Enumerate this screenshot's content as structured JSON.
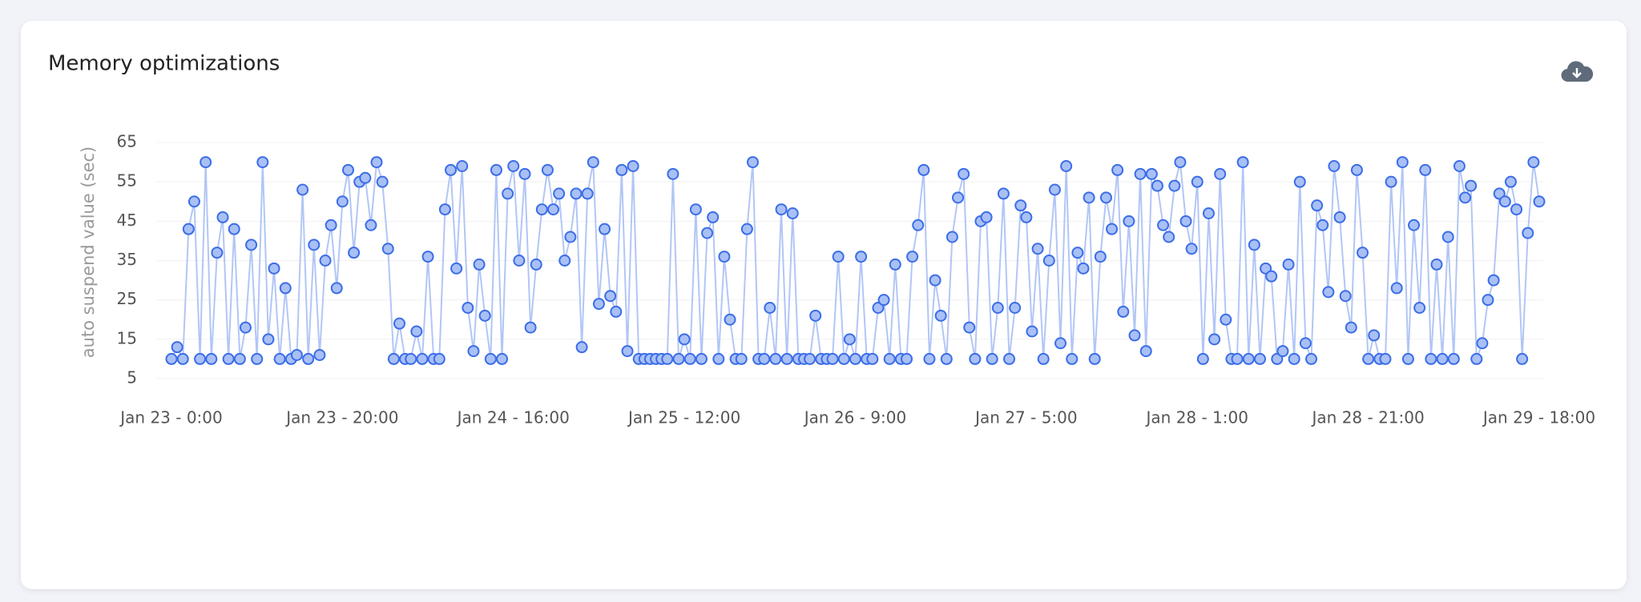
{
  "chart_data": {
    "type": "line",
    "title": "Memory optimizations",
    "y_label": "auto suspend value (sec)",
    "categories": [
      "Jan 23 - 0:00",
      null,
      null,
      null,
      null,
      null,
      null,
      null,
      null,
      null,
      null,
      null,
      null,
      null,
      null,
      null,
      null,
      null,
      null,
      null,
      null,
      null,
      null,
      null,
      null,
      null,
      null,
      null,
      null,
      null,
      "Jan 23 - 20:00",
      null,
      null,
      null,
      null,
      null,
      null,
      null,
      null,
      null,
      null,
      null,
      null,
      null,
      null,
      null,
      null,
      null,
      null,
      null,
      null,
      null,
      null,
      null,
      null,
      null,
      null,
      null,
      null,
      null,
      "Jan 24 - 16:00",
      null,
      null,
      null,
      null,
      null,
      null,
      null,
      null,
      null,
      null,
      null,
      null,
      null,
      null,
      null,
      null,
      null,
      null,
      null,
      null,
      null,
      null,
      null,
      null,
      null,
      null,
      null,
      null,
      null,
      "Jan 25 - 12:00",
      null,
      null,
      null,
      null,
      null,
      null,
      null,
      null,
      null,
      null,
      null,
      null,
      null,
      null,
      null,
      null,
      null,
      null,
      null,
      null,
      null,
      null,
      null,
      null,
      null,
      null,
      null,
      null,
      null,
      "Jan 26 - 9:00",
      null,
      null,
      null,
      null,
      null,
      null,
      null,
      null,
      null,
      null,
      null,
      null,
      null,
      null,
      null,
      null,
      null,
      null,
      null,
      null,
      null,
      null,
      null,
      null,
      null,
      null,
      null,
      null,
      null,
      "Jan 27 - 5:00",
      null,
      null,
      null,
      null,
      null,
      null,
      null,
      null,
      null,
      null,
      null,
      null,
      null,
      null,
      null,
      null,
      null,
      null,
      null,
      null,
      null,
      null,
      null,
      null,
      null,
      null,
      null,
      null,
      null,
      "Jan 28 - 1:00",
      null,
      null,
      null,
      null,
      null,
      null,
      null,
      null,
      null,
      null,
      null,
      null,
      null,
      null,
      null,
      null,
      null,
      null,
      null,
      null,
      null,
      null,
      null,
      null,
      null,
      null,
      null,
      null,
      null,
      "Jan 28 - 21:00",
      null,
      null,
      null,
      null,
      null,
      null,
      null,
      null,
      null,
      null,
      null,
      null,
      null,
      null,
      null,
      null,
      null,
      null,
      null,
      null,
      null,
      null,
      null,
      null,
      null,
      null,
      null,
      null,
      null,
      "Jan 29 - 18:00"
    ],
    "values": [
      10,
      13,
      10,
      43,
      50,
      10,
      60,
      10,
      37,
      46,
      10,
      43,
      10,
      18,
      39,
      10,
      60,
      15,
      33,
      10,
      28,
      10,
      11,
      53,
      10,
      39,
      11,
      35,
      44,
      28,
      50,
      58,
      37,
      55,
      56,
      44,
      60,
      55,
      38,
      10,
      19,
      10,
      10,
      17,
      10,
      36,
      10,
      10,
      48,
      58,
      33,
      59,
      23,
      12,
      34,
      21,
      10,
      58,
      10,
      52,
      59,
      35,
      57,
      18,
      34,
      48,
      58,
      48,
      52,
      35,
      41,
      52,
      13,
      52,
      60,
      24,
      43,
      26,
      22,
      58,
      12,
      59,
      10,
      10,
      10,
      10,
      10,
      10,
      57,
      10,
      15,
      10,
      48,
      10,
      42,
      46,
      10,
      36,
      20,
      10,
      10,
      43,
      60,
      10,
      10,
      23,
      10,
      48,
      10,
      47,
      10,
      10,
      10,
      21,
      10,
      10,
      10,
      36,
      10,
      15,
      10,
      36,
      10,
      10,
      23,
      25,
      10,
      34,
      10,
      10,
      36,
      44,
      58,
      10,
      30,
      21,
      10,
      41,
      51,
      57,
      18,
      10,
      45,
      46,
      10,
      23,
      52,
      10,
      23,
      49,
      46,
      17,
      38,
      10,
      35,
      53,
      14,
      59,
      10,
      37,
      33,
      51,
      10,
      36,
      51,
      43,
      58,
      22,
      45,
      16,
      57,
      12,
      57,
      54,
      44,
      41,
      54,
      60,
      45,
      38,
      55,
      10,
      47,
      15,
      57,
      20,
      10,
      10,
      60,
      10,
      39,
      10,
      33,
      31,
      10,
      12,
      34,
      10,
      55,
      14,
      10,
      49,
      44,
      27,
      59,
      46,
      26,
      18,
      58,
      37,
      10,
      16,
      10,
      10,
      55,
      28,
      60,
      10,
      44,
      23,
      58,
      10,
      34,
      10,
      41,
      10,
      59,
      51,
      54,
      10,
      14,
      25,
      30,
      52,
      50,
      55,
      48,
      10,
      42,
      60,
      50
    ],
    "color": "#3b6de8",
    "ylim": [
      5,
      65
    ],
    "yticks": [
      5,
      15,
      25,
      35,
      45,
      55,
      65
    ],
    "grid": true
  }
}
